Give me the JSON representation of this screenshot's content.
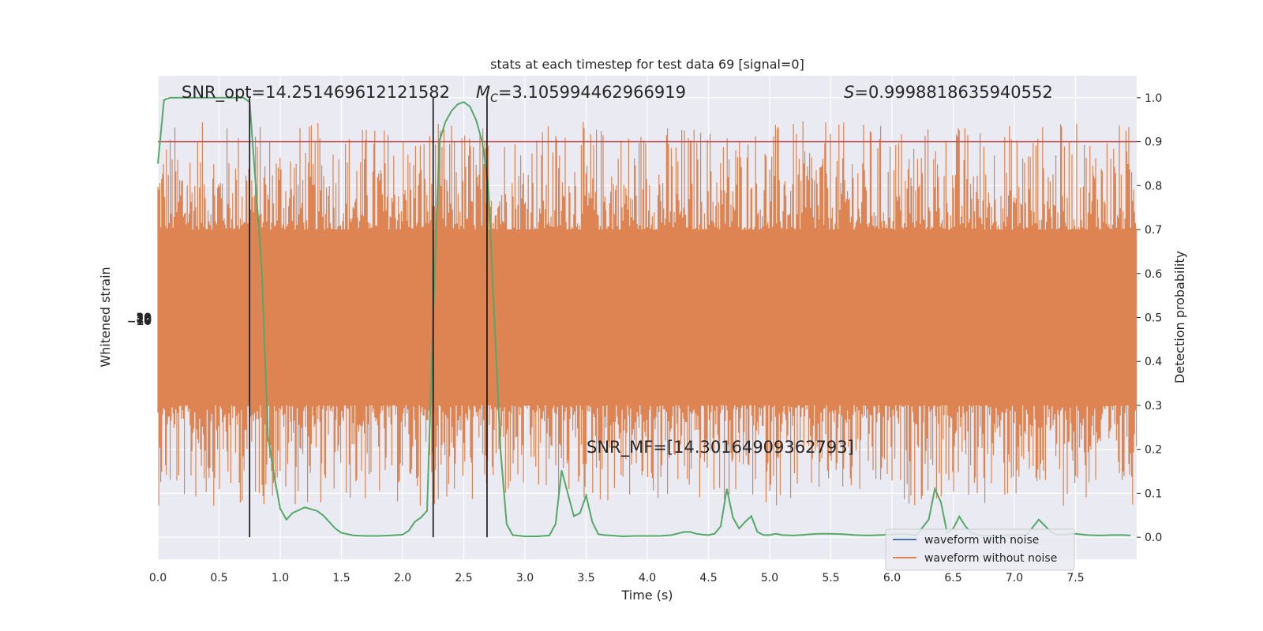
{
  "chart_data": {
    "type": "line",
    "title": "stats at each timestep for test data 69 [signal=0]",
    "xlabel": "Time (s)",
    "ylabel_left": "Whitened strain",
    "ylabel_right": "Detection probability",
    "xlim": [
      0.0,
      8.0
    ],
    "ylim_right": [
      -0.05,
      1.05
    ],
    "grid": true,
    "legend_placement": "lower-right",
    "x_ticks": [
      "0.0",
      "0.5",
      "1.0",
      "1.5",
      "2.0",
      "2.5",
      "3.0",
      "3.5",
      "4.0",
      "4.5",
      "5.0",
      "5.5",
      "6.0",
      "6.5",
      "7.0",
      "7.5"
    ],
    "y_ticks_right": [
      "0.0",
      "0.1",
      "0.2",
      "0.3",
      "0.4",
      "0.5",
      "0.6",
      "0.7",
      "0.8",
      "0.9",
      "1.0"
    ],
    "left_tick_labels": [
      "−10",
      "0",
      "10",
      "20",
      "30"
    ],
    "annotations": {
      "snr_opt": "SNR_opt=14.251469612121582",
      "mc": "=3.105994462966919",
      "mc_symbol": "M",
      "mc_sub": "C",
      "s_value": "=0.9998818635940552",
      "s_symbol": "S",
      "snr_mf": "SNR_MF=[14.30164909362793]"
    },
    "threshold": 0.9,
    "vertical_lines_x": [
      0.75,
      2.25,
      2.69
    ],
    "legend": [
      {
        "label": "waveform with noise",
        "color": "#4c72b0"
      },
      {
        "label": "waveform without noise",
        "color": "#dd8452"
      }
    ],
    "series": [
      {
        "name": "waveform without noise",
        "color": "#dd8452",
        "kind": "noise-band",
        "band_low": 0.3,
        "band_high": 0.7
      },
      {
        "color": "#55a868",
        "x": [
          0.0,
          0.05,
          0.1,
          0.2,
          0.3,
          0.4,
          0.5,
          0.6,
          0.65,
          0.7,
          0.75,
          0.8,
          0.85,
          0.9,
          0.95,
          1.0,
          1.05,
          1.1,
          1.2,
          1.3,
          1.35,
          1.4,
          1.45,
          1.5,
          1.6,
          1.7,
          1.8,
          1.9,
          2.0,
          2.05,
          2.1,
          2.15,
          2.2,
          2.25,
          2.3,
          2.35,
          2.4,
          2.45,
          2.5,
          2.55,
          2.6,
          2.65,
          2.7,
          2.75,
          2.8,
          2.85,
          2.9,
          3.0,
          3.1,
          3.2,
          3.25,
          3.3,
          3.4,
          3.45,
          3.5,
          3.55,
          3.6,
          3.65,
          3.7,
          3.8,
          3.9,
          4.0,
          4.1,
          4.2,
          4.3,
          4.35,
          4.4,
          4.45,
          4.5,
          4.55,
          4.6,
          4.65,
          4.7,
          4.75,
          4.8,
          4.85,
          4.9,
          4.95,
          5.0,
          5.05,
          5.1,
          5.2,
          5.3,
          5.4,
          5.5,
          5.6,
          5.7,
          5.8,
          5.9,
          6.0,
          6.1,
          6.2,
          6.3,
          6.35,
          6.4,
          6.45,
          6.5,
          6.55,
          6.6,
          6.65,
          6.7,
          6.8,
          6.9,
          7.0,
          7.1,
          7.2,
          7.3,
          7.35,
          7.4,
          7.5,
          7.6,
          7.7,
          7.8,
          7.9,
          7.95
        ],
        "y": [
          0.85,
          0.995,
          1.0,
          1.0,
          1.0,
          1.0,
          1.0,
          1.0,
          1.0,
          1.0,
          0.99,
          0.8,
          0.6,
          0.23,
          0.14,
          0.065,
          0.04,
          0.055,
          0.068,
          0.06,
          0.05,
          0.035,
          0.02,
          0.01,
          0.004,
          0.003,
          0.003,
          0.004,
          0.006,
          0.015,
          0.035,
          0.045,
          0.06,
          0.5,
          0.9,
          0.945,
          0.97,
          0.985,
          0.99,
          0.98,
          0.95,
          0.9,
          0.8,
          0.5,
          0.2,
          0.03,
          0.005,
          0.002,
          0.002,
          0.004,
          0.03,
          0.152,
          0.048,
          0.055,
          0.095,
          0.035,
          0.007,
          0.005,
          0.004,
          0.002,
          0.003,
          0.003,
          0.003,
          0.005,
          0.012,
          0.012,
          0.008,
          0.006,
          0.005,
          0.008,
          0.025,
          0.11,
          0.045,
          0.02,
          0.035,
          0.048,
          0.012,
          0.005,
          0.005,
          0.008,
          0.005,
          0.004,
          0.006,
          0.008,
          0.008,
          0.007,
          0.005,
          0.004,
          0.005,
          0.006,
          0.008,
          0.005,
          0.04,
          0.11,
          0.08,
          0.01,
          0.02,
          0.047,
          0.025,
          0.01,
          0.005,
          0.003,
          0.004,
          0.005,
          0.005,
          0.04,
          0.012,
          0.005,
          0.006,
          0.008,
          0.005,
          0.004,
          0.005,
          0.005,
          0.004
        ]
      }
    ]
  }
}
